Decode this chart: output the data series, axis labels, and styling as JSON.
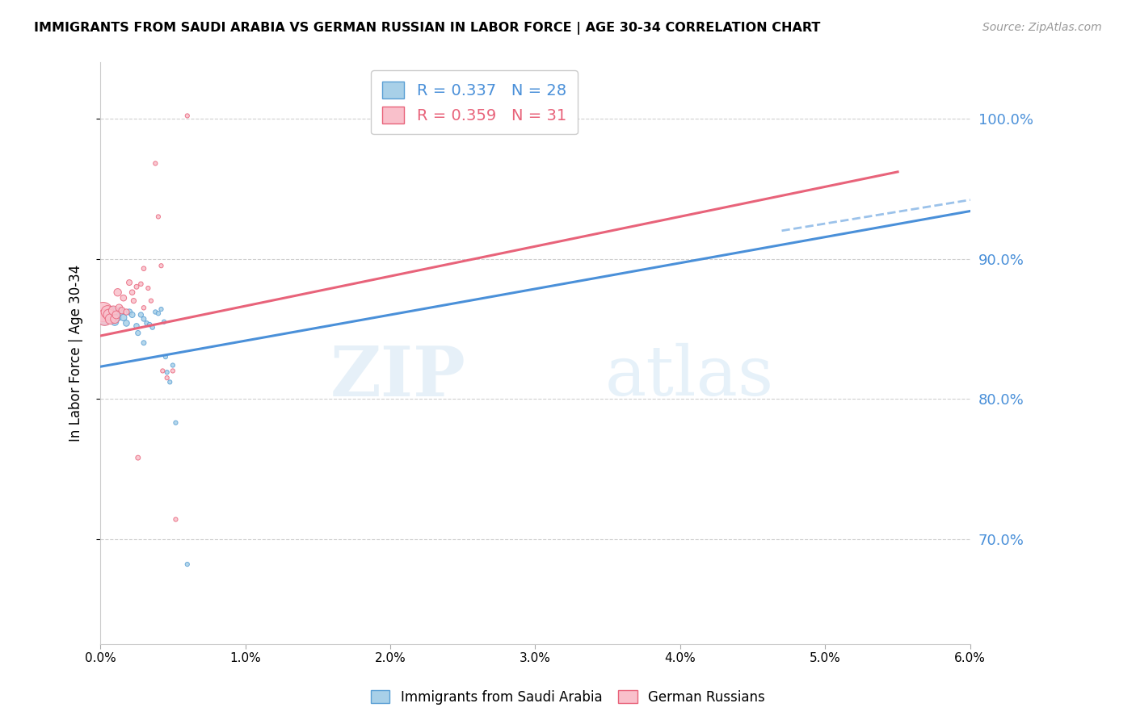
{
  "title": "IMMIGRANTS FROM SAUDI ARABIA VS GERMAN RUSSIAN IN LABOR FORCE | AGE 30-34 CORRELATION CHART",
  "source": "Source: ZipAtlas.com",
  "ylabel": "In Labor Force | Age 30-34",
  "yticks": [
    0.7,
    0.8,
    0.9,
    1.0
  ],
  "ytick_labels": [
    "70.0%",
    "80.0%",
    "90.0%",
    "100.0%"
  ],
  "xmin": 0.0,
  "xmax": 0.06,
  "ymin": 0.625,
  "ymax": 1.04,
  "blue_R": "0.337",
  "blue_N": "28",
  "pink_R": "0.359",
  "pink_N": "31",
  "blue_label": "Immigrants from Saudi Arabia",
  "pink_label": "German Russians",
  "blue_color": "#a8d0e8",
  "pink_color": "#f9c0cb",
  "blue_edge_color": "#5a9fd4",
  "pink_edge_color": "#e8637a",
  "blue_line_color": "#4a90d9",
  "pink_line_color": "#e8637a",
  "blue_scatter": [
    [
      0.0003,
      0.857
    ],
    [
      0.0006,
      0.86
    ],
    [
      0.0008,
      0.863
    ],
    [
      0.001,
      0.855
    ],
    [
      0.0012,
      0.858
    ],
    [
      0.0014,
      0.863
    ],
    [
      0.0016,
      0.858
    ],
    [
      0.0018,
      0.854
    ],
    [
      0.002,
      0.862
    ],
    [
      0.0022,
      0.86
    ],
    [
      0.0025,
      0.852
    ],
    [
      0.0026,
      0.847
    ],
    [
      0.0028,
      0.86
    ],
    [
      0.003,
      0.857
    ],
    [
      0.003,
      0.84
    ],
    [
      0.0032,
      0.854
    ],
    [
      0.0034,
      0.853
    ],
    [
      0.0036,
      0.851
    ],
    [
      0.0038,
      0.862
    ],
    [
      0.004,
      0.861
    ],
    [
      0.0042,
      0.864
    ],
    [
      0.0044,
      0.855
    ],
    [
      0.0045,
      0.83
    ],
    [
      0.0046,
      0.819
    ],
    [
      0.0048,
      0.812
    ],
    [
      0.005,
      0.824
    ],
    [
      0.0052,
      0.783
    ],
    [
      0.006,
      0.682
    ]
  ],
  "pink_scatter": [
    [
      0.0002,
      0.862
    ],
    [
      0.0003,
      0.858
    ],
    [
      0.0005,
      0.862
    ],
    [
      0.0006,
      0.86
    ],
    [
      0.0007,
      0.857
    ],
    [
      0.0009,
      0.863
    ],
    [
      0.001,
      0.857
    ],
    [
      0.0011,
      0.86
    ],
    [
      0.0012,
      0.876
    ],
    [
      0.0013,
      0.865
    ],
    [
      0.0015,
      0.863
    ],
    [
      0.0016,
      0.872
    ],
    [
      0.0018,
      0.862
    ],
    [
      0.002,
      0.883
    ],
    [
      0.0022,
      0.876
    ],
    [
      0.0023,
      0.87
    ],
    [
      0.0025,
      0.88
    ],
    [
      0.0026,
      0.758
    ],
    [
      0.0028,
      0.882
    ],
    [
      0.003,
      0.893
    ],
    [
      0.003,
      0.865
    ],
    [
      0.0033,
      0.879
    ],
    [
      0.0035,
      0.87
    ],
    [
      0.0038,
      0.968
    ],
    [
      0.004,
      0.93
    ],
    [
      0.0042,
      0.895
    ],
    [
      0.0043,
      0.82
    ],
    [
      0.0046,
      0.815
    ],
    [
      0.005,
      0.82
    ],
    [
      0.0052,
      0.714
    ],
    [
      0.006,
      1.002
    ]
  ],
  "blue_sizes_raw": [
    120,
    70,
    55,
    45,
    40,
    38,
    35,
    30,
    28,
    25,
    22,
    20,
    20,
    18,
    18,
    16,
    16,
    15,
    15,
    15,
    14,
    14,
    14,
    14,
    14,
    14,
    14,
    14
  ],
  "pink_sizes_raw": [
    300,
    200,
    130,
    100,
    85,
    70,
    60,
    50,
    45,
    40,
    35,
    30,
    28,
    25,
    22,
    20,
    18,
    18,
    16,
    16,
    15,
    14,
    14,
    14,
    14,
    14,
    14,
    14,
    14,
    14,
    14
  ],
  "blue_line_x": [
    0.0,
    0.06
  ],
  "blue_line_y": [
    0.823,
    0.934
  ],
  "pink_line_x": [
    0.0,
    0.055
  ],
  "pink_line_y": [
    0.845,
    0.962
  ],
  "dashed_line_x": [
    0.047,
    0.06
  ],
  "dashed_line_y": [
    0.92,
    0.942
  ],
  "watermark_top": "ZIP",
  "watermark_bottom": "atlas",
  "grid_color": "#d0d0d0",
  "background_color": "#ffffff",
  "right_axis_color": "#4a90d9"
}
